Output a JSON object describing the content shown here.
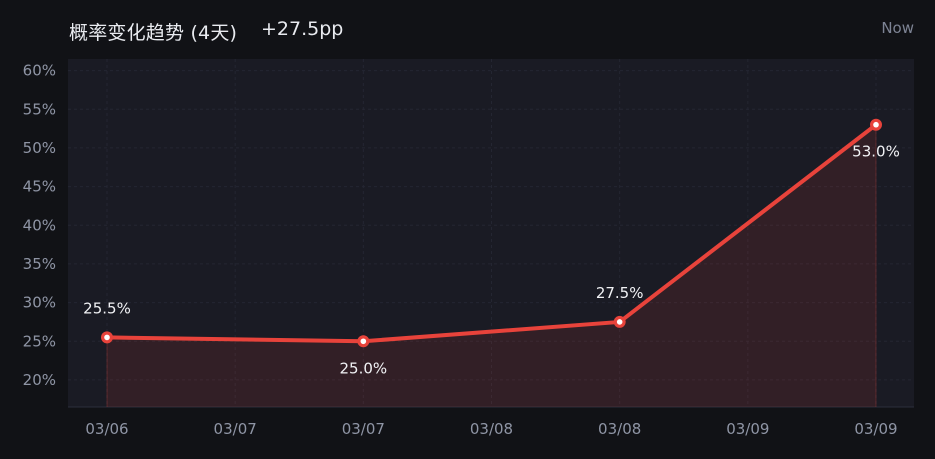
{
  "header": {
    "title": "概率变化趋势 (4天)",
    "change": "+27.5pp",
    "now_label": "Now"
  },
  "colors": {
    "background": "#111216",
    "plot_background": "#1a1b24",
    "line": "#e8433b",
    "area": "#e8433b",
    "grid": "#242632",
    "tick_text": "#8f95a5",
    "data_label": "#f1f2f5"
  },
  "chart_data": {
    "type": "area",
    "title": "概率变化趋势 (4天)",
    "xlabel": "",
    "ylabel": "",
    "x_tick_labels": [
      "03/06",
      "03/07",
      "03/07",
      "03/08",
      "03/08",
      "03/09",
      "03/09"
    ],
    "y_tick_labels": [
      "20%",
      "25%",
      "30%",
      "35%",
      "40%",
      "45%",
      "50%",
      "55%",
      "60%"
    ],
    "y_ticks": [
      20,
      25,
      30,
      35,
      40,
      45,
      50,
      55,
      60
    ],
    "ylim": [
      16.5,
      61.5
    ],
    "x": [
      0,
      1,
      2,
      3
    ],
    "xlim": [
      0,
      3
    ],
    "series": [
      {
        "values": [
          25.5,
          25.0,
          27.5,
          53.0
        ],
        "data_labels": [
          "25.5%",
          "25.0%",
          "27.5%",
          "53.0%"
        ],
        "label_positions": [
          "above",
          "below",
          "above",
          "below"
        ]
      }
    ],
    "grid": true,
    "legend": "none"
  }
}
